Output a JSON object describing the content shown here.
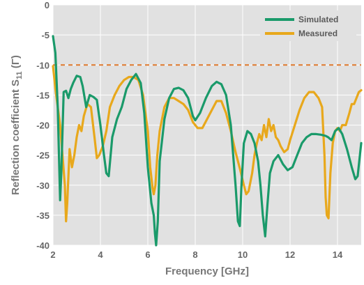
{
  "chart_data": {
    "type": "line",
    "xlabel": "Frequency [GHz]",
    "ylabel_main": "Reflection coefficient S",
    "ylabel_sub": "11",
    "ylabel_suffix": " (Γ)",
    "xlim": [
      2,
      15
    ],
    "ylim": [
      -40,
      0
    ],
    "xticks": [
      2,
      4,
      6,
      8,
      10,
      12,
      14
    ],
    "yticks": [
      0,
      -5,
      -10,
      -15,
      -20,
      -25,
      -30,
      -35,
      -40
    ],
    "grid": true,
    "legend_position": "top-right",
    "background": "#e1e1e1",
    "threshold": {
      "y": -10,
      "color": "#e07a2e"
    },
    "series": [
      {
        "name": "Simulated",
        "color": "#1a9a6a",
        "x": [
          2.0,
          2.1,
          2.2,
          2.3,
          2.35,
          2.45,
          2.55,
          2.65,
          2.75,
          2.85,
          3.0,
          3.15,
          3.25,
          3.4,
          3.55,
          3.7,
          3.85,
          4.0,
          4.15,
          4.25,
          4.35,
          4.5,
          4.7,
          4.9,
          5.1,
          5.3,
          5.5,
          5.7,
          5.85,
          6.0,
          6.15,
          6.25,
          6.3,
          6.35,
          6.42,
          6.5,
          6.7,
          6.9,
          7.1,
          7.3,
          7.5,
          7.7,
          7.9,
          8.0,
          8.2,
          8.45,
          8.7,
          8.9,
          9.1,
          9.3,
          9.5,
          9.7,
          9.8,
          9.88,
          9.95,
          10.05,
          10.2,
          10.35,
          10.5,
          10.65,
          10.75,
          10.85,
          10.95,
          11.05,
          11.15,
          11.3,
          11.5,
          11.7,
          11.9,
          12.1,
          12.3,
          12.5,
          12.7,
          12.9,
          13.1,
          13.3,
          13.5,
          13.6,
          13.75,
          13.9,
          14.05,
          14.2,
          14.4,
          14.6,
          14.75,
          14.85,
          15.0
        ],
        "values": [
          -5.2,
          -8.0,
          -17.0,
          -32.5,
          -28.0,
          -14.5,
          -14.3,
          -15.5,
          -14.0,
          -13.0,
          -11.8,
          -12.0,
          -13.5,
          -17.0,
          -15.0,
          -15.3,
          -15.8,
          -20.0,
          -25.0,
          -28.0,
          -28.5,
          -22.0,
          -19.0,
          -17.0,
          -14.0,
          -12.5,
          -11.5,
          -13.0,
          -18.0,
          -27.0,
          -33.0,
          -35.0,
          -38.0,
          -40.0,
          -36.0,
          -26.0,
          -19.0,
          -15.5,
          -14.0,
          -13.8,
          -14.2,
          -15.5,
          -18.5,
          -19.2,
          -18.0,
          -15.5,
          -13.5,
          -12.8,
          -13.2,
          -15.0,
          -20.0,
          -30.0,
          -36.0,
          -36.8,
          -30.0,
          -23.0,
          -21.0,
          -21.5,
          -23.0,
          -26.0,
          -30.0,
          -35.0,
          -38.5,
          -33.0,
          -28.0,
          -26.0,
          -25.0,
          -26.5,
          -27.5,
          -27.0,
          -25.0,
          -23.0,
          -22.0,
          -21.5,
          -21.5,
          -21.6,
          -21.8,
          -22.0,
          -22.5,
          -21.0,
          -20.5,
          -21.5,
          -24.0,
          -27.0,
          -29.0,
          -28.5,
          -23.0
        ]
      },
      {
        "name": "Measured",
        "color": "#e8a81c",
        "x": [
          2.0,
          2.05,
          2.1,
          2.2,
          2.3,
          2.4,
          2.5,
          2.55,
          2.6,
          2.7,
          2.8,
          2.9,
          3.0,
          3.1,
          3.2,
          3.3,
          3.45,
          3.6,
          3.75,
          3.85,
          3.95,
          4.1,
          4.25,
          4.4,
          4.6,
          4.8,
          5.0,
          5.2,
          5.4,
          5.6,
          5.8,
          6.0,
          6.1,
          6.2,
          6.25,
          6.32,
          6.4,
          6.5,
          6.7,
          6.9,
          7.1,
          7.3,
          7.5,
          7.7,
          7.9,
          8.1,
          8.3,
          8.5,
          8.7,
          8.9,
          9.1,
          9.3,
          9.5,
          9.7,
          9.9,
          10.05,
          10.15,
          10.25,
          10.4,
          10.5,
          10.6,
          10.7,
          10.8,
          10.9,
          11.0,
          11.1,
          11.2,
          11.3,
          11.4,
          11.5,
          11.6,
          11.75,
          11.9,
          12.0,
          12.2,
          12.4,
          12.6,
          12.8,
          13.0,
          13.2,
          13.35,
          13.45,
          13.5,
          13.55,
          13.62,
          13.7,
          13.8,
          13.9,
          14.0,
          14.1,
          14.2,
          14.35,
          14.5,
          14.6,
          14.7,
          14.8,
          14.9,
          15.0
        ],
        "values": [
          -10.2,
          -12.0,
          -14.0,
          -17.0,
          -20.0,
          -25.0,
          -30.0,
          -36.0,
          -33.0,
          -24.0,
          -27.0,
          -25.0,
          -22.0,
          -20.0,
          -21.0,
          -18.5,
          -16.5,
          -17.0,
          -22.0,
          -25.5,
          -25.0,
          -23.5,
          -21.0,
          -17.0,
          -15.0,
          -13.5,
          -12.5,
          -12.0,
          -12.0,
          -12.5,
          -15.0,
          -21.0,
          -27.0,
          -30.5,
          -31.5,
          -30.0,
          -25.0,
          -21.0,
          -17.0,
          -15.5,
          -15.5,
          -16.0,
          -16.5,
          -17.5,
          -19.5,
          -20.5,
          -20.5,
          -19.0,
          -17.5,
          -16.0,
          -16.0,
          -18.0,
          -21.0,
          -24.5,
          -27.5,
          -30.0,
          -31.5,
          -31.0,
          -28.0,
          -25.0,
          -23.0,
          -21.5,
          -22.5,
          -20.0,
          -22.0,
          -19.0,
          -21.0,
          -20.0,
          -22.0,
          -22.5,
          -23.5,
          -24.5,
          -24.0,
          -22.5,
          -20.0,
          -17.5,
          -15.5,
          -14.5,
          -14.5,
          -15.5,
          -17.0,
          -25.0,
          -32.0,
          -35.0,
          -35.5,
          -28.0,
          -23.0,
          -21.0,
          -20.5,
          -21.0,
          -20.0,
          -20.0,
          -18.0,
          -16.5,
          -16.5,
          -15.5,
          -14.5,
          -14.2
        ]
      }
    ]
  }
}
